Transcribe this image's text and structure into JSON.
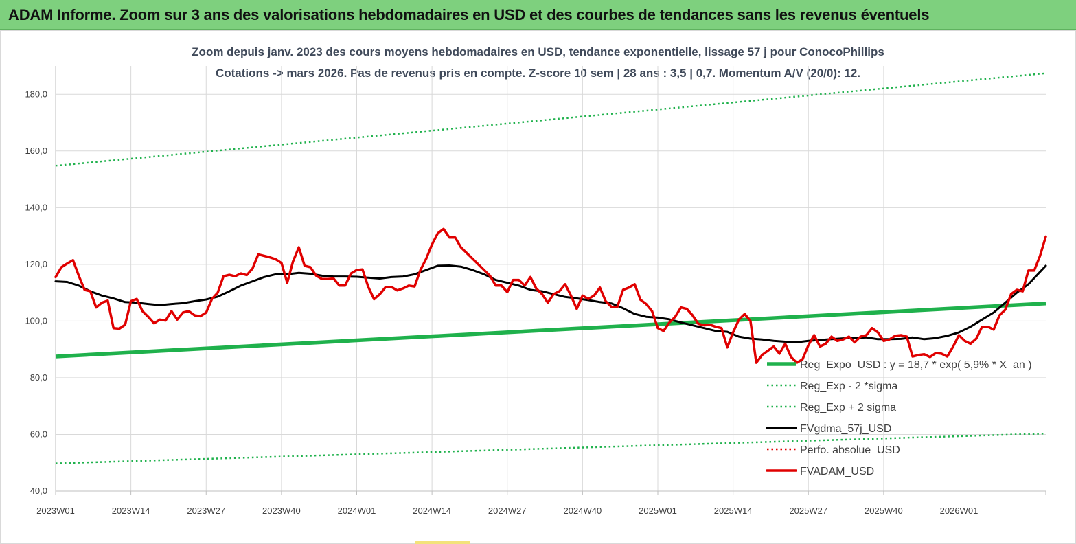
{
  "banner": {
    "title": "ADAM Informe. Zoom sur 3 ans des valorisations hebdomadaires en USD et des courbes de tendances sans les revenus éventuels",
    "color": "#7ed07e"
  },
  "chart_data": {
    "type": "line",
    "title": "Zoom depuis janv. 2023 des cours moyens hebdomadaires en USD, tendance exponentielle, lissage 57 j pour ConocoPhillips",
    "subtitle": "Cotations -> mars 2026. Pas de revenus pris en compte. Z-score 10 sem  | 28 ans : 3,5 | 0,7. Momentum A/V (20/0): 12.",
    "xlabel": "",
    "ylabel": "",
    "ylim": [
      40,
      190
    ],
    "y_ticks": [
      "40,0",
      "60,0",
      "80,0",
      "100,0",
      "120,0",
      "140,0",
      "160,0",
      "180,0"
    ],
    "y_tick_values": [
      40,
      60,
      80,
      100,
      120,
      140,
      160,
      180
    ],
    "x_ticks": [
      "2023W01",
      "2023W14",
      "2023W27",
      "2023W40",
      "2024W01",
      "2024W14",
      "2024W27",
      "2024W40",
      "2025W01",
      "2025W14",
      "2025W27",
      "2025W40",
      "2026W01"
    ],
    "x_tick_index": [
      0,
      13,
      26,
      39,
      52,
      65,
      78,
      91,
      104,
      117,
      130,
      143,
      156
    ],
    "x_count": 172,
    "grid": true,
    "legend_position": "bottom-right",
    "series": [
      {
        "name": "Reg_Expo_USD : y = 18,7 * exp( 5,9% *  X_an )",
        "style": "thick-solid",
        "color": "#1fb14c",
        "x": [
          0,
          171
        ],
        "values": [
          87.5,
          106.2
        ]
      },
      {
        "name": "Reg_Exp - 2 *sigma",
        "style": "dotted",
        "color": "#1fb14c",
        "x": [
          0,
          171
        ],
        "values": [
          49.8,
          60.3
        ]
      },
      {
        "name": "Reg_Exp + 2 sigma",
        "style": "dotted",
        "color": "#1fb14c",
        "x": [
          0,
          171
        ],
        "values": [
          154.8,
          187.4
        ]
      },
      {
        "name": "FVgdma_57j_USD",
        "style": "solid",
        "color": "#000000",
        "x": [
          0,
          2,
          4,
          6,
          8,
          10,
          12,
          14,
          16,
          18,
          20,
          22,
          24,
          26,
          28,
          30,
          32,
          34,
          36,
          38,
          40,
          42,
          44,
          46,
          48,
          50,
          52,
          54,
          56,
          58,
          60,
          62,
          64,
          66,
          68,
          70,
          72,
          74,
          76,
          78,
          80,
          82,
          84,
          86,
          88,
          90,
          92,
          94,
          96,
          98,
          100,
          102,
          104,
          106,
          108,
          110,
          112,
          114,
          116,
          118,
          120,
          122,
          124,
          126,
          128,
          130,
          132,
          134,
          136,
          138,
          140,
          142,
          144,
          146,
          148,
          150,
          152,
          154,
          156,
          158,
          160,
          162,
          164,
          166,
          168,
          171
        ],
        "values": [
          114.0,
          113.8,
          112.5,
          110.5,
          109.0,
          108.0,
          106.7,
          106.5,
          106.0,
          105.6,
          106.0,
          106.3,
          107.0,
          107.6,
          108.6,
          110.5,
          112.5,
          114.0,
          115.5,
          116.5,
          116.5,
          117.0,
          116.7,
          116.0,
          115.7,
          115.7,
          115.6,
          115.3,
          115.0,
          115.5,
          115.7,
          116.5,
          118.0,
          119.5,
          119.6,
          119.2,
          118.0,
          116.5,
          114.5,
          113.5,
          112.5,
          111.0,
          110.5,
          109.5,
          108.5,
          108.0,
          107.4,
          106.7,
          106.2,
          104.5,
          102.5,
          101.5,
          101.2,
          100.6,
          99.5,
          98.5,
          97.5,
          96.5,
          96.2,
          94.5,
          93.8,
          93.5,
          93.0,
          92.7,
          92.5,
          93.0,
          93.3,
          93.6,
          93.9,
          94.0,
          94.2,
          93.6,
          93.6,
          93.7,
          94.2,
          93.6,
          94.0,
          94.8,
          96.0,
          98.0,
          100.5,
          103.0,
          106.5,
          110.0,
          113.0,
          119.5
        ]
      },
      {
        "name": "Perfo. absolue_USD",
        "style": "dotted",
        "color": "#e00000",
        "x": [],
        "values": []
      },
      {
        "name": "FVADAM_USD",
        "style": "solid",
        "color": "#e00000",
        "x": [
          0,
          1,
          2,
          3,
          4,
          5,
          6,
          7,
          8,
          9,
          10,
          11,
          12,
          13,
          14,
          15,
          16,
          17,
          18,
          19,
          20,
          21,
          22,
          23,
          24,
          25,
          26,
          27,
          28,
          29,
          30,
          31,
          32,
          33,
          34,
          35,
          36,
          37,
          38,
          39,
          40,
          41,
          42,
          43,
          44,
          45,
          46,
          47,
          48,
          49,
          50,
          51,
          52,
          53,
          54,
          55,
          56,
          57,
          58,
          59,
          60,
          61,
          62,
          63,
          64,
          65,
          66,
          67,
          68,
          69,
          70,
          71,
          72,
          73,
          74,
          75,
          76,
          77,
          78,
          79,
          80,
          81,
          82,
          83,
          84,
          85,
          86,
          87,
          88,
          89,
          90,
          91,
          92,
          93,
          94,
          95,
          96,
          97,
          98,
          99,
          100,
          101,
          102,
          103,
          104,
          105,
          106,
          107,
          108,
          109,
          110,
          111,
          112,
          113,
          114,
          115,
          116,
          117,
          118,
          119,
          120,
          121,
          122,
          123,
          124,
          125,
          126,
          127,
          128,
          129,
          130,
          131,
          132,
          133,
          134,
          135,
          136,
          137,
          138,
          139,
          140,
          141,
          142,
          143,
          144,
          145,
          146,
          147,
          148,
          149,
          150,
          151,
          152,
          153,
          154,
          155,
          156,
          157,
          158,
          159,
          160,
          161,
          162,
          163,
          164,
          165,
          166,
          167,
          168,
          169,
          170,
          171
        ],
        "values": [
          115.5,
          119.0,
          120.3,
          121.5,
          116.0,
          111.0,
          110.5,
          104.8,
          106.5,
          107.2,
          97.5,
          97.3,
          98.7,
          107.0,
          107.8,
          103.5,
          101.5,
          99.2,
          100.5,
          100.2,
          103.5,
          100.5,
          103.0,
          103.5,
          102.0,
          101.7,
          103.0,
          107.8,
          110.0,
          115.8,
          116.3,
          115.8,
          116.8,
          116.2,
          118.5,
          123.5,
          123.0,
          122.5,
          121.8,
          120.5,
          113.5,
          121.0,
          126.0,
          119.5,
          119.0,
          116.0,
          114.8,
          114.8,
          115.0,
          112.5,
          112.5,
          116.8,
          118.0,
          118.2,
          112.0,
          107.7,
          109.5,
          112.0,
          112.0,
          110.8,
          111.5,
          112.5,
          112.2,
          118.0,
          122.0,
          127.0,
          131.0,
          132.5,
          129.5,
          129.5,
          126.0,
          124.0,
          122.0,
          120.0,
          118.0,
          116.0,
          112.5,
          112.5,
          110.2,
          114.5,
          114.5,
          112.5,
          115.5,
          111.5,
          109.5,
          106.5,
          109.5,
          110.5,
          113.0,
          109.0,
          104.3,
          109.0,
          107.8,
          109.0,
          111.8,
          107.0,
          105.0,
          105.0,
          111.0,
          111.8,
          113.0,
          107.5,
          106.0,
          103.5,
          97.5,
          96.5,
          99.5,
          101.5,
          104.8,
          104.3,
          102.0,
          99.0,
          98.5,
          98.7,
          98.0,
          97.5,
          90.7,
          96.0,
          100.5,
          102.5,
          100.0,
          85.3,
          88.0,
          89.5,
          91.0,
          88.5,
          92.0,
          87.3,
          85.3,
          86.5,
          91.5,
          95.0,
          91.0,
          92.0,
          94.5,
          93.0,
          93.5,
          94.5,
          92.5,
          94.5,
          95.0,
          97.5,
          96.0,
          93.0,
          93.5,
          94.8,
          95.0,
          94.5,
          87.5,
          88.0,
          88.3,
          87.3,
          88.7,
          88.5,
          87.5,
          91.0,
          95.0,
          93.0,
          92.0,
          93.8,
          98.0,
          98.0,
          97.0,
          102.0,
          104.0,
          109.5,
          111.0,
          110.5,
          117.8,
          117.8,
          123.0,
          129.8
        ]
      }
    ]
  }
}
